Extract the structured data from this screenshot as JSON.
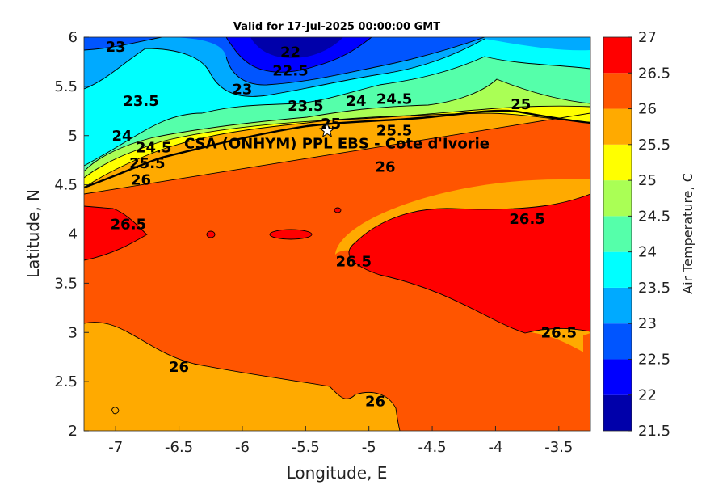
{
  "title": "Valid for 17-Jul-2025 00:00:00 GMT",
  "xlabel": "Longitude, E",
  "ylabel": "Latitude, N",
  "colorbar_label": "Air Temperature, C",
  "station": {
    "label": "CSA (ONHYM) PPL EBS  - Cote d'Ivorie",
    "lon": -5.33,
    "lat": 5.05
  },
  "colors": {
    "21.5": "#0000aa",
    "22": "#0000ff",
    "22.5": "#0055ff",
    "23": "#00aaff",
    "23.5": "#00ffff",
    "24": "#55ffaa",
    "24.5": "#aaff55",
    "25": "#ffff00",
    "25.5": "#ffaa00",
    "26": "#ff5500",
    "26.5": "#ff0000",
    "27": "#aa0000"
  },
  "chart_data": {
    "type": "heatmap",
    "xlim": [
      -7.25,
      -3.25
    ],
    "ylim": [
      2,
      6
    ],
    "x_ticks": [
      "-7",
      "-6.5",
      "-6",
      "-5.5",
      "-5",
      "-4.5",
      "-4",
      "-3.5"
    ],
    "y_ticks": [
      "2",
      "2.5",
      "3",
      "3.5",
      "4",
      "4.5",
      "5",
      "5.5",
      "6"
    ],
    "colorbar_ticks": [
      "21.5",
      "22",
      "22.5",
      "23",
      "23.5",
      "24",
      "24.5",
      "25",
      "25.5",
      "26",
      "26.5",
      "27"
    ],
    "contour_levels": [
      21.5,
      22,
      22.5,
      23,
      23.5,
      24,
      24.5,
      25,
      25.5,
      26,
      26.5,
      27
    ],
    "contour_labels": [
      {
        "text": "23",
        "lon": -7.0,
        "lat": 5.9
      },
      {
        "text": "22",
        "lon": -5.62,
        "lat": 5.85
      },
      {
        "text": "22.5",
        "lon": -5.62,
        "lat": 5.66
      },
      {
        "text": "23",
        "lon": -6.0,
        "lat": 5.47
      },
      {
        "text": "23.5",
        "lon": -6.8,
        "lat": 5.35
      },
      {
        "text": "23.5",
        "lon": -5.5,
        "lat": 5.3
      },
      {
        "text": "24",
        "lon": -5.1,
        "lat": 5.35
      },
      {
        "text": "24.5",
        "lon": -4.8,
        "lat": 5.37
      },
      {
        "text": "25",
        "lon": -3.8,
        "lat": 5.32
      },
      {
        "text": "24",
        "lon": -6.95,
        "lat": 5.0
      },
      {
        "text": "24.5",
        "lon": -6.7,
        "lat": 4.88
      },
      {
        "text": "25",
        "lon": -5.3,
        "lat": 5.12
      },
      {
        "text": "25.5",
        "lon": -6.75,
        "lat": 4.72
      },
      {
        "text": "25.5",
        "lon": -4.8,
        "lat": 5.05
      },
      {
        "text": "26",
        "lon": -6.8,
        "lat": 4.55
      },
      {
        "text": "26",
        "lon": -4.87,
        "lat": 4.68
      },
      {
        "text": "26.5",
        "lon": -6.9,
        "lat": 4.1
      },
      {
        "text": "26.5",
        "lon": -5.12,
        "lat": 3.72
      },
      {
        "text": "26.5",
        "lon": -3.75,
        "lat": 4.15
      },
      {
        "text": "26.5",
        "lon": -3.5,
        "lat": 3.0
      },
      {
        "text": "26",
        "lon": -6.5,
        "lat": 2.65
      },
      {
        "text": "26",
        "lon": -4.95,
        "lat": 2.3
      }
    ]
  }
}
